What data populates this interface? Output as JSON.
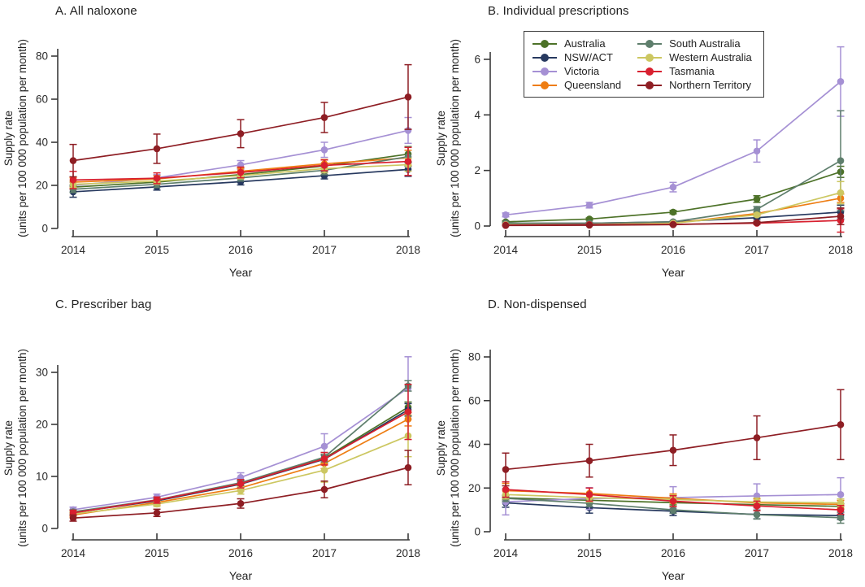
{
  "figure": {
    "xlabel": "Year",
    "ylabel_line1": "Supply rate",
    "ylabel_line2": "(units per 100 000 population per month)"
  },
  "palette": {
    "Australia": "#4d7228",
    "NSW/ACT": "#27395f",
    "Victoria": "#a590d4",
    "Queensland": "#ee7d13",
    "South Australia": "#5e7e6c",
    "Western Australia": "#ccc761",
    "Tasmania": "#d8202f",
    "Northern Territory": "#8e1e24"
  },
  "legend": {
    "column1": [
      "Australia",
      "NSW/ACT",
      "Victoria",
      "Queensland"
    ],
    "column2": [
      "South Australia",
      "Western Australia",
      "Tasmania",
      "Northern Territory"
    ]
  },
  "chart_data": {
    "type": "line",
    "x": [
      2014,
      2015,
      2016,
      2017,
      2018
    ],
    "xlabel": "Year",
    "ylabel": "Supply rate (units per 100 000 population per month)",
    "legend_position": "top of panel B",
    "grid": false,
    "panels": [
      {
        "title": "A. All naloxone",
        "yticks": [
          0,
          20,
          40,
          60,
          80
        ],
        "ylim": [
          0,
          80
        ],
        "series": [
          {
            "name": "Australia",
            "values": [
              19.2,
              21.5,
              25.0,
              29.0,
              34.5
            ],
            "err": [
              1.0,
              1.0,
              1.0,
              1.2,
              3.5
            ]
          },
          {
            "name": "NSW/ACT",
            "values": [
              17.0,
              19.3,
              21.7,
              24.5,
              27.4
            ],
            "err": [
              2.5,
              1.5,
              1.5,
              1.5,
              3.2
            ]
          },
          {
            "name": "Victoria",
            "values": [
              20.0,
              23.5,
              29.5,
              36.5,
              45.5
            ],
            "err": [
              1.5,
              1.5,
              2.0,
              3.5,
              6.0
            ]
          },
          {
            "name": "Queensland",
            "values": [
              21.5,
              23.0,
              26.5,
              30.0,
              32.8
            ],
            "err": [
              2.0,
              1.5,
              1.5,
              2.0,
              3.5
            ]
          },
          {
            "name": "South Australia",
            "values": [
              18.2,
              20.5,
              23.5,
              27.0,
              33.3
            ],
            "err": [
              1.5,
              1.5,
              1.5,
              2.0,
              4.5
            ]
          },
          {
            "name": "Western Australia",
            "values": [
              20.5,
              22.0,
              24.5,
              27.8,
              29.6
            ],
            "err": [
              1.5,
              1.5,
              1.5,
              2.0,
              3.0
            ]
          },
          {
            "name": "Tasmania",
            "values": [
              22.5,
              23.3,
              26.0,
              29.3,
              31.1
            ],
            "err": [
              4.0,
              2.5,
              2.5,
              2.5,
              6.5
            ]
          },
          {
            "name": "Northern Territory",
            "values": [
              31.5,
              37.0,
              44.0,
              51.5,
              61.0
            ],
            "err": [
              7.5,
              6.8,
              6.5,
              7.0,
              15.0
            ]
          }
        ]
      },
      {
        "title": "B. Individual prescriptions",
        "yticks": [
          0,
          2,
          4,
          6
        ],
        "ylim": [
          0,
          6
        ],
        "series": [
          {
            "name": "Australia",
            "values": [
              0.15,
              0.25,
              0.5,
              0.97,
              1.95
            ],
            "err": [
              0.03,
              0.04,
              0.06,
              0.12,
              0.2
            ]
          },
          {
            "name": "NSW/ACT",
            "values": [
              0.1,
              0.1,
              0.15,
              0.3,
              0.5
            ],
            "err": [
              0.02,
              0.02,
              0.03,
              0.05,
              0.25
            ]
          },
          {
            "name": "Victoria",
            "values": [
              0.4,
              0.75,
              1.4,
              2.7,
              5.2
            ],
            "err": [
              0.07,
              0.1,
              0.17,
              0.4,
              1.25
            ]
          },
          {
            "name": "Queensland",
            "values": [
              0.04,
              0.05,
              0.1,
              0.45,
              1.0
            ],
            "err": [
              0.01,
              0.01,
              0.02,
              0.06,
              0.15
            ]
          },
          {
            "name": "South Australia",
            "values": [
              0.1,
              0.1,
              0.15,
              0.6,
              2.35
            ],
            "err": [
              0.02,
              0.02,
              0.03,
              0.1,
              1.8
            ]
          },
          {
            "name": "Western Australia",
            "values": [
              0.05,
              0.05,
              0.1,
              0.4,
              1.2
            ],
            "err": [
              0.01,
              0.01,
              0.02,
              0.06,
              0.4
            ]
          },
          {
            "name": "Tasmania",
            "values": [
              0.03,
              0.05,
              0.06,
              0.1,
              0.2
            ],
            "err": [
              0.01,
              0.01,
              0.02,
              0.04,
              0.42
            ]
          },
          {
            "name": "Northern Territory",
            "values": [
              0.02,
              0.03,
              0.05,
              0.12,
              0.35
            ],
            "err": [
              0.01,
              0.01,
              0.02,
              0.05,
              0.3
            ]
          }
        ]
      },
      {
        "title": "C. Prescriber bag",
        "yticks": [
          0,
          10,
          20,
          30
        ],
        "ylim": [
          0,
          30
        ],
        "series": [
          {
            "name": "Australia",
            "values": [
              3.1,
              5.4,
              8.7,
              13.5,
              23.3
            ],
            "err": [
              0.3,
              0.4,
              0.5,
              0.7,
              1.0
            ]
          },
          {
            "name": "NSW/ACT",
            "values": [
              3.05,
              5.3,
              8.5,
              13.3,
              22.8
            ],
            "err": [
              0.35,
              0.45,
              0.55,
              0.8,
              1.2
            ]
          },
          {
            "name": "Victoria",
            "values": [
              3.6,
              6.0,
              9.8,
              15.8,
              27.0
            ],
            "err": [
              0.5,
              0.6,
              0.9,
              2.4,
              6.0
            ]
          },
          {
            "name": "Queensland",
            "values": [
              2.6,
              5.0,
              7.8,
              12.5,
              21.0
            ],
            "err": [
              0.4,
              0.5,
              0.6,
              1.0,
              1.3
            ]
          },
          {
            "name": "South Australia",
            "values": [
              3.2,
              5.5,
              8.8,
              13.7,
              27.4
            ],
            "err": [
              0.4,
              0.5,
              0.6,
              0.9,
              1.0
            ]
          },
          {
            "name": "Western Australia",
            "values": [
              2.8,
              4.7,
              7.3,
              11.2,
              17.8
            ],
            "err": [
              0.4,
              0.5,
              0.7,
              2.3,
              4.0
            ]
          },
          {
            "name": "Tasmania",
            "values": [
              3.0,
              5.45,
              8.6,
              13.4,
              22.4
            ],
            "err": [
              0.5,
              0.6,
              0.8,
              1.2,
              5.3
            ]
          },
          {
            "name": "Northern Territory",
            "values": [
              2.0,
              3.0,
              4.8,
              7.5,
              11.7
            ],
            "err": [
              0.6,
              0.7,
              0.9,
              1.6,
              3.3
            ]
          }
        ]
      },
      {
        "title": "D. Non-dispensed",
        "yticks": [
          0,
          20,
          40,
          60,
          80
        ],
        "ylim": [
          0,
          80
        ],
        "series": [
          {
            "name": "Australia",
            "values": [
              15.5,
              14.4,
              13.3,
              12.4,
              11.6
            ],
            "err": [
              1.0,
              1.0,
              1.0,
              1.0,
              1.2
            ]
          },
          {
            "name": "NSW/ACT",
            "values": [
              13.2,
              11.0,
              9.4,
              7.9,
              7.4
            ],
            "err": [
              2.0,
              2.5,
              2.0,
              2.0,
              1.8
            ]
          },
          {
            "name": "Victoria",
            "values": [
              13.7,
              15.2,
              15.6,
              16.4,
              17.0
            ],
            "err": [
              6.0,
              5.0,
              5.0,
              5.5,
              7.7
            ]
          },
          {
            "name": "Queensland",
            "values": [
              18.8,
              17.5,
              15.3,
              13.2,
              12.5
            ],
            "err": [
              3.3,
              2.5,
              2.0,
              1.8,
              1.8
            ]
          },
          {
            "name": "South Australia",
            "values": [
              15.3,
              13.0,
              10.0,
              7.8,
              6.4
            ],
            "err": [
              1.5,
              1.5,
              1.5,
              2.0,
              2.5
            ]
          },
          {
            "name": "Western Australia",
            "values": [
              17.0,
              15.6,
              14.8,
              13.6,
              13.2
            ],
            "err": [
              2.0,
              2.0,
              2.0,
              1.8,
              1.8
            ]
          },
          {
            "name": "Tasmania",
            "values": [
              19.3,
              17.0,
              14.0,
              11.8,
              10.0
            ],
            "err": [
              3.5,
              3.0,
              2.5,
              2.2,
              2.0
            ]
          },
          {
            "name": "Northern Territory",
            "values": [
              28.5,
              32.5,
              37.3,
              43.0,
              49.0
            ],
            "err": [
              7.5,
              7.5,
              7.0,
              10.0,
              16.0
            ]
          }
        ]
      }
    ]
  }
}
